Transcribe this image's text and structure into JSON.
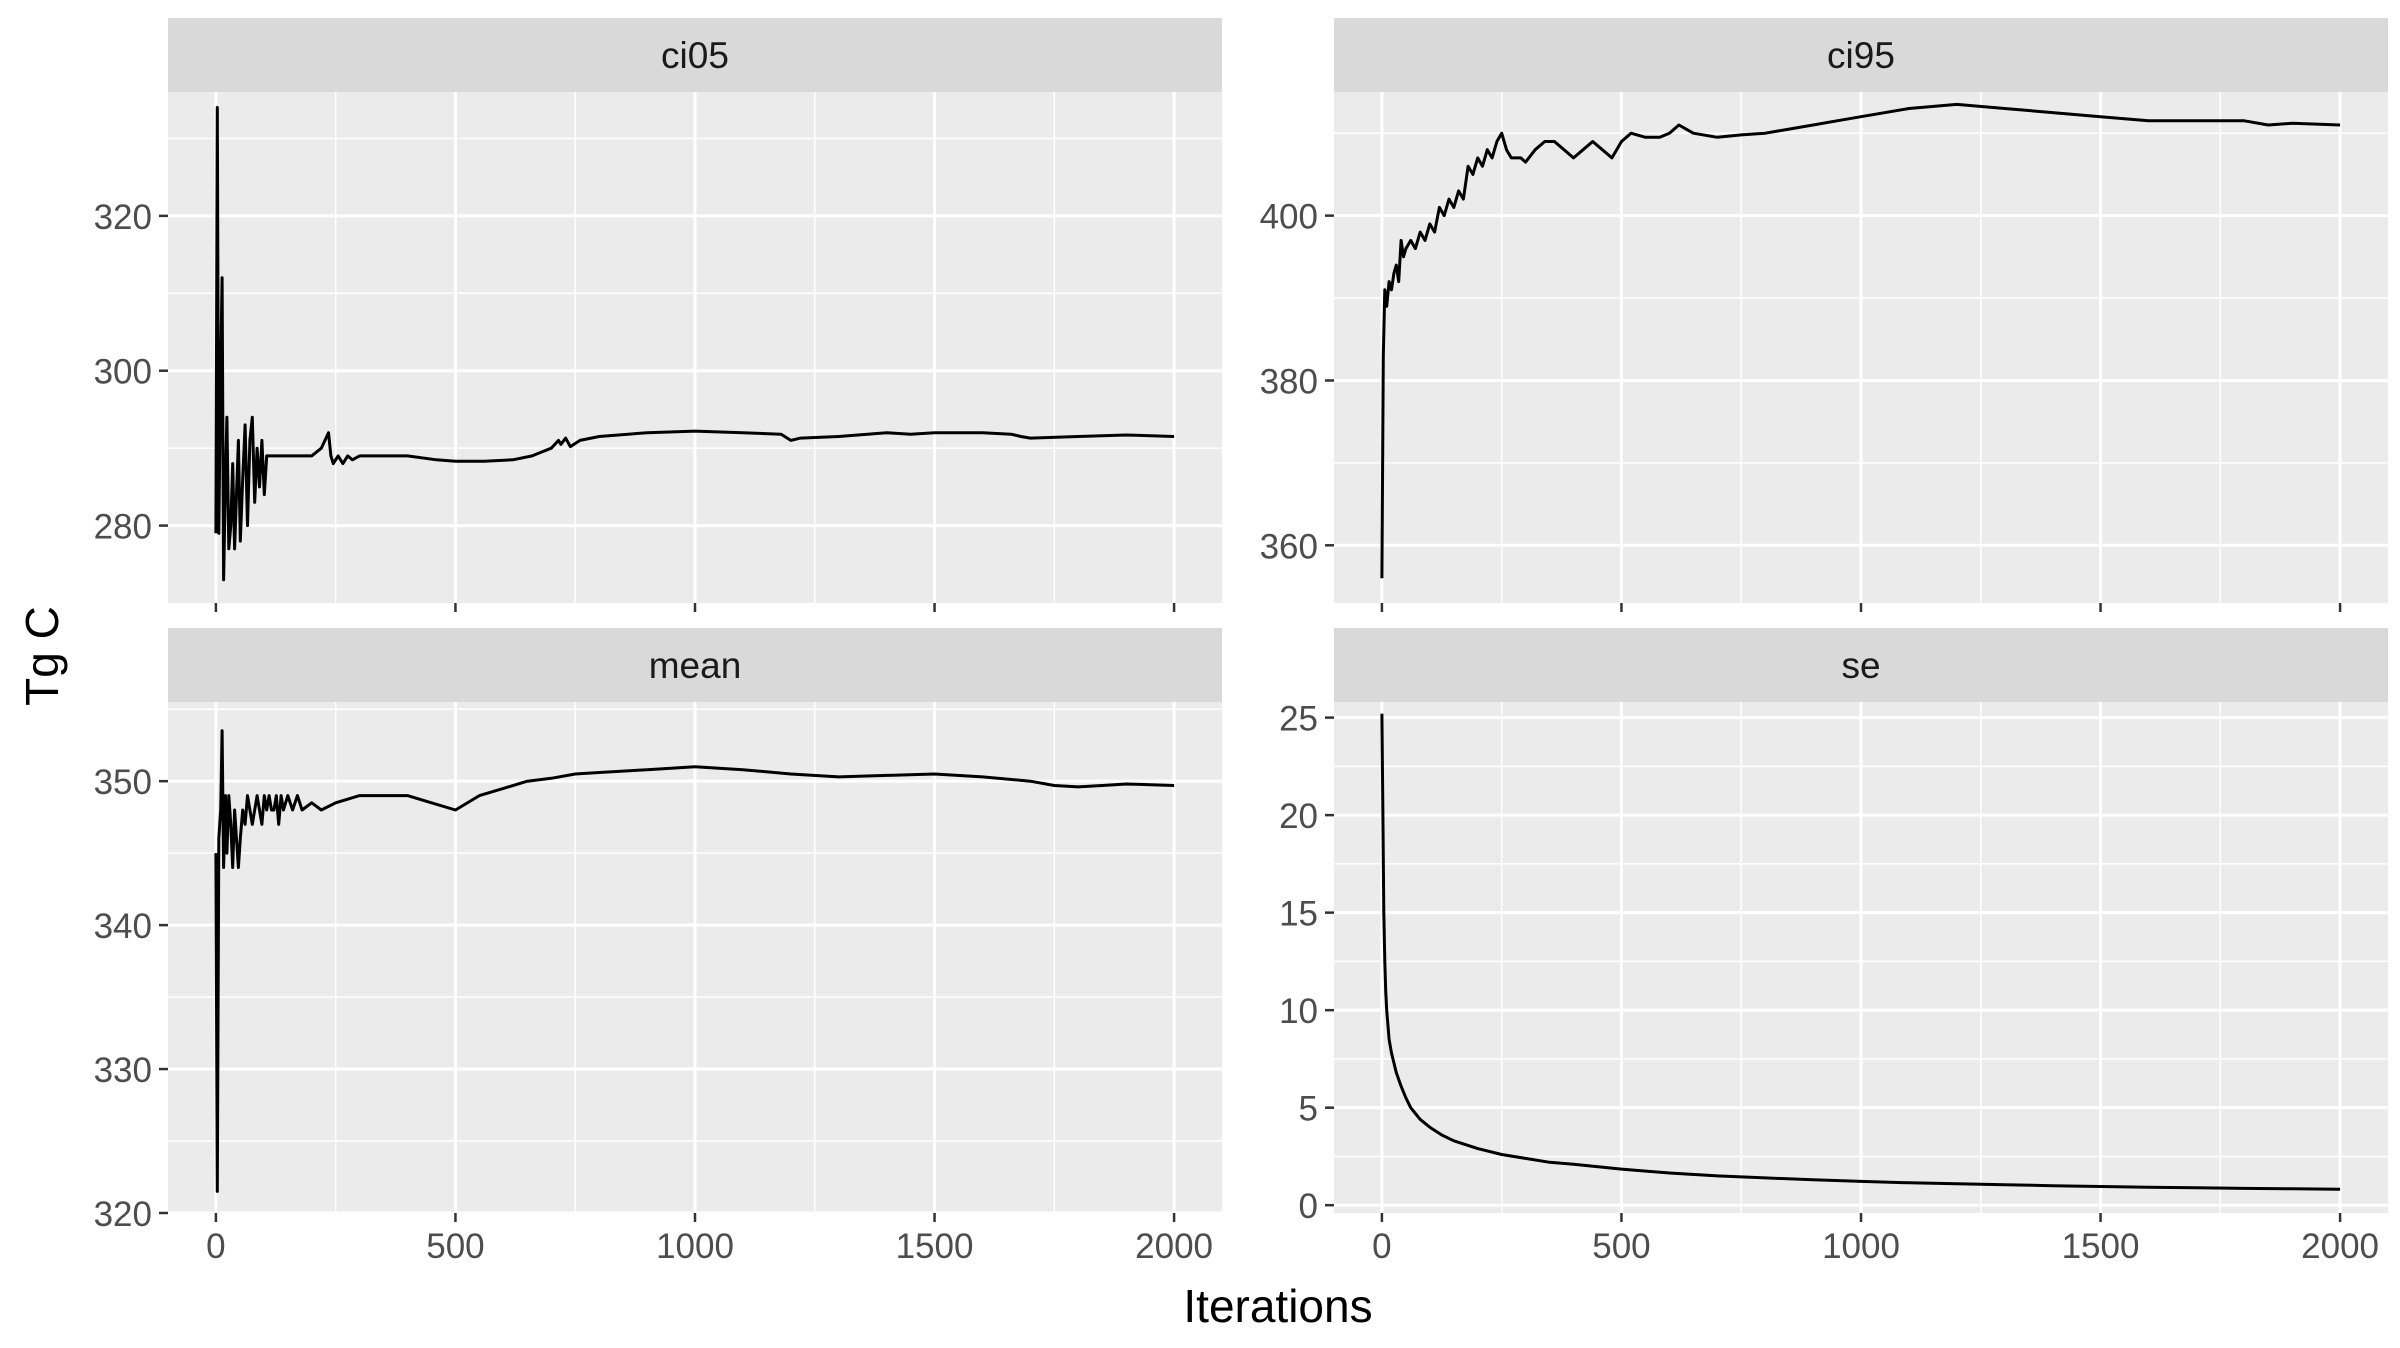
{
  "chart_data": {
    "type": "line",
    "layout": "facet-grid 2x2, free y scales",
    "xlabel": "Iterations",
    "ylabel": "Tg C",
    "x_ticks": [
      0,
      500,
      1000,
      1500,
      2000
    ],
    "xlim": [
      -100,
      2100
    ],
    "panel_background": "#ebebeb",
    "strip_background": "#d9d9d9",
    "grid": "white major and minor",
    "line_color": "#000000",
    "panels": [
      {
        "strip": "ci05",
        "ylim": [
          270,
          336
        ],
        "y_ticks": [
          280,
          300,
          320
        ],
        "x": [
          0,
          3,
          6,
          10,
          13,
          16,
          20,
          23,
          27,
          31,
          35,
          39,
          43,
          47,
          51,
          56,
          61,
          66,
          71,
          76,
          81,
          86,
          91,
          96,
          101,
          106,
          111,
          116,
          121,
          126,
          131,
          136,
          140,
          160,
          180,
          200,
          220,
          235,
          240,
          245,
          255,
          265,
          275,
          285,
          300,
          340,
          400,
          460,
          500,
          560,
          620,
          660,
          680,
          700,
          715,
          720,
          730,
          740,
          760,
          800,
          900,
          1000,
          1100,
          1180,
          1200,
          1220,
          1300,
          1400,
          1450,
          1500,
          1600,
          1660,
          1680,
          1700,
          1800,
          1900,
          2000
        ],
        "y": [
          279,
          334,
          279,
          300,
          312,
          273,
          286,
          294,
          277,
          280,
          288,
          277,
          284,
          291,
          278,
          286,
          293,
          280,
          291,
          294,
          283,
          290,
          285,
          291,
          284,
          289,
          289,
          289,
          289,
          289,
          289,
          289,
          289,
          289,
          289,
          289,
          290,
          292,
          289,
          288,
          289,
          288,
          289,
          288.5,
          289,
          289,
          289,
          288.5,
          288.3,
          288.3,
          288.5,
          289,
          289.5,
          290,
          291,
          290.5,
          291.3,
          290.2,
          291,
          291.5,
          292,
          292.2,
          292,
          291.8,
          291,
          291.3,
          291.5,
          292,
          291.8,
          292,
          292,
          291.8,
          291.5,
          291.3,
          291.5,
          291.7,
          291.5
        ]
      },
      {
        "strip": "ci95",
        "ylim": [
          353,
          415
        ],
        "y_ticks": [
          360,
          380,
          400
        ],
        "x": [
          0,
          3,
          6,
          10,
          15,
          20,
          25,
          30,
          35,
          40,
          45,
          50,
          60,
          70,
          80,
          90,
          100,
          110,
          120,
          130,
          140,
          150,
          160,
          170,
          180,
          190,
          200,
          210,
          220,
          230,
          240,
          250,
          260,
          270,
          290,
          300,
          320,
          340,
          360,
          380,
          400,
          420,
          440,
          460,
          480,
          500,
          520,
          550,
          580,
          600,
          620,
          650,
          700,
          750,
          800,
          850,
          900,
          950,
          1000,
          1100,
          1200,
          1300,
          1400,
          1500,
          1600,
          1700,
          1750,
          1800,
          1850,
          1900,
          2000
        ],
        "y": [
          356,
          383,
          391,
          389,
          392,
          391,
          393,
          394,
          392,
          397,
          395,
          396,
          397,
          396,
          398,
          397,
          399,
          398,
          401,
          400,
          402,
          401,
          403,
          402,
          406,
          405,
          407,
          406,
          408,
          407,
          409,
          410,
          408,
          407,
          407,
          406.5,
          408,
          409,
          409,
          408,
          407,
          408,
          409,
          408,
          407,
          409,
          410,
          409.5,
          409.5,
          410,
          411,
          410,
          409.5,
          409.8,
          410,
          410.5,
          411,
          411.5,
          412,
          413,
          413.5,
          413,
          412.5,
          412,
          411.5,
          411.5,
          411.5,
          411.5,
          411,
          411.2,
          411
        ]
      },
      {
        "strip": "mean",
        "ylim": [
          320,
          355.5
        ],
        "y_ticks": [
          320,
          330,
          340,
          350
        ],
        "x": [
          0,
          3,
          6,
          10,
          13,
          16,
          20,
          23,
          27,
          31,
          35,
          39,
          43,
          47,
          51,
          56,
          61,
          66,
          71,
          76,
          81,
          86,
          91,
          96,
          101,
          106,
          111,
          116,
          121,
          126,
          131,
          136,
          141,
          150,
          160,
          170,
          180,
          200,
          220,
          250,
          300,
          350,
          400,
          450,
          500,
          550,
          600,
          650,
          700,
          750,
          800,
          900,
          1000,
          1100,
          1200,
          1300,
          1400,
          1500,
          1600,
          1700,
          1750,
          1800,
          1850,
          1900,
          2000
        ],
        "y": [
          345,
          321.5,
          346,
          348,
          353.5,
          344,
          349,
          345,
          349,
          347,
          344,
          348,
          346,
          344,
          346,
          348,
          347,
          349,
          348,
          347,
          348,
          349,
          348,
          347,
          349,
          348,
          349,
          348,
          348,
          349,
          347,
          349,
          348,
          349,
          348,
          349,
          348,
          348.5,
          348,
          348.5,
          349,
          349,
          349,
          348.5,
          348,
          349,
          349.5,
          350,
          350.2,
          350.5,
          350.6,
          350.8,
          351,
          350.8,
          350.5,
          350.3,
          350.4,
          350.5,
          350.3,
          350,
          349.7,
          349.6,
          349.7,
          349.8,
          349.7
        ]
      },
      {
        "strip": "se",
        "ylim": [
          -0.4,
          25.8
        ],
        "y_ticks": [
          0,
          5,
          10,
          15,
          20,
          25
        ],
        "x": [
          0,
          2,
          4,
          6,
          8,
          10,
          15,
          20,
          30,
          40,
          50,
          60,
          70,
          80,
          90,
          100,
          125,
          150,
          175,
          200,
          250,
          300,
          350,
          400,
          500,
          600,
          700,
          800,
          900,
          1000,
          1100,
          1200,
          1300,
          1400,
          1500,
          1600,
          1700,
          1800,
          1900,
          2000
        ],
        "y": [
          25.2,
          20,
          15,
          12.5,
          11,
          10,
          8.5,
          7.8,
          6.8,
          6.1,
          5.5,
          5,
          4.7,
          4.4,
          4.2,
          4,
          3.6,
          3.3,
          3.1,
          2.9,
          2.6,
          2.4,
          2.2,
          2.1,
          1.85,
          1.65,
          1.5,
          1.4,
          1.3,
          1.22,
          1.15,
          1.1,
          1.05,
          1.0,
          0.96,
          0.92,
          0.89,
          0.86,
          0.84,
          0.82
        ]
      }
    ]
  }
}
